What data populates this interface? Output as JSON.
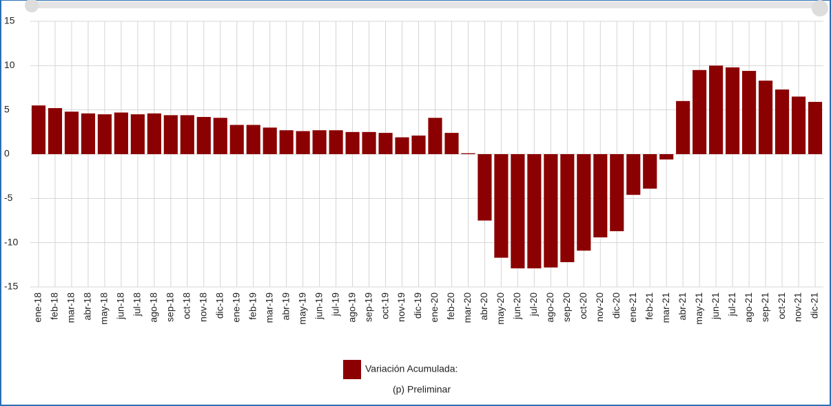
{
  "chart_data": {
    "type": "bar",
    "categories": [
      "ene-18",
      "feb-18",
      "mar-18",
      "abr-18",
      "may-18",
      "jun-18",
      "jul-18",
      "ago-18",
      "sep-18",
      "oct-18",
      "nov-18",
      "dic-18",
      "ene-19",
      "feb-19",
      "mar-19",
      "abr-19",
      "may-19",
      "jun-19",
      "jul-19",
      "ago-19",
      "sep-19",
      "oct-19",
      "nov-19",
      "dic-19",
      "ene-20",
      "feb-20",
      "mar-20",
      "abr-20",
      "may-20",
      "jun-20",
      "jul-20",
      "ago-20",
      "sep-20",
      "oct-20",
      "nov-20",
      "dic-20",
      "ene-21",
      "feb-21",
      "mar-21",
      "abr-21",
      "may-21",
      "jun-21",
      "jul-21",
      "ago-21",
      "sep-21",
      "oct-21",
      "nov-21",
      "dic-21"
    ],
    "series": [
      {
        "name": "Variación Acumulada:",
        "color": "#8b0000",
        "values": [
          5.5,
          5.2,
          4.8,
          4.6,
          4.5,
          4.7,
          4.5,
          4.6,
          4.4,
          4.4,
          4.2,
          4.1,
          3.3,
          3.3,
          3.0,
          2.7,
          2.6,
          2.7,
          2.7,
          2.5,
          2.5,
          2.4,
          1.9,
          2.1,
          4.1,
          2.4,
          0.1,
          -7.5,
          -11.7,
          -12.9,
          -12.9,
          -12.8,
          -12.2,
          -10.9,
          -9.4,
          -8.7,
          -4.6,
          -3.9,
          -0.6,
          6.0,
          9.5,
          10.0,
          9.8,
          9.4,
          8.3,
          7.3,
          6.5,
          5.9
        ]
      }
    ],
    "ylim": [
      -15,
      15
    ],
    "yticks": [
      -15,
      -10,
      -5,
      0,
      5,
      10,
      15
    ],
    "grid": true,
    "legend": "bottom",
    "note": "(p) Preliminar"
  }
}
